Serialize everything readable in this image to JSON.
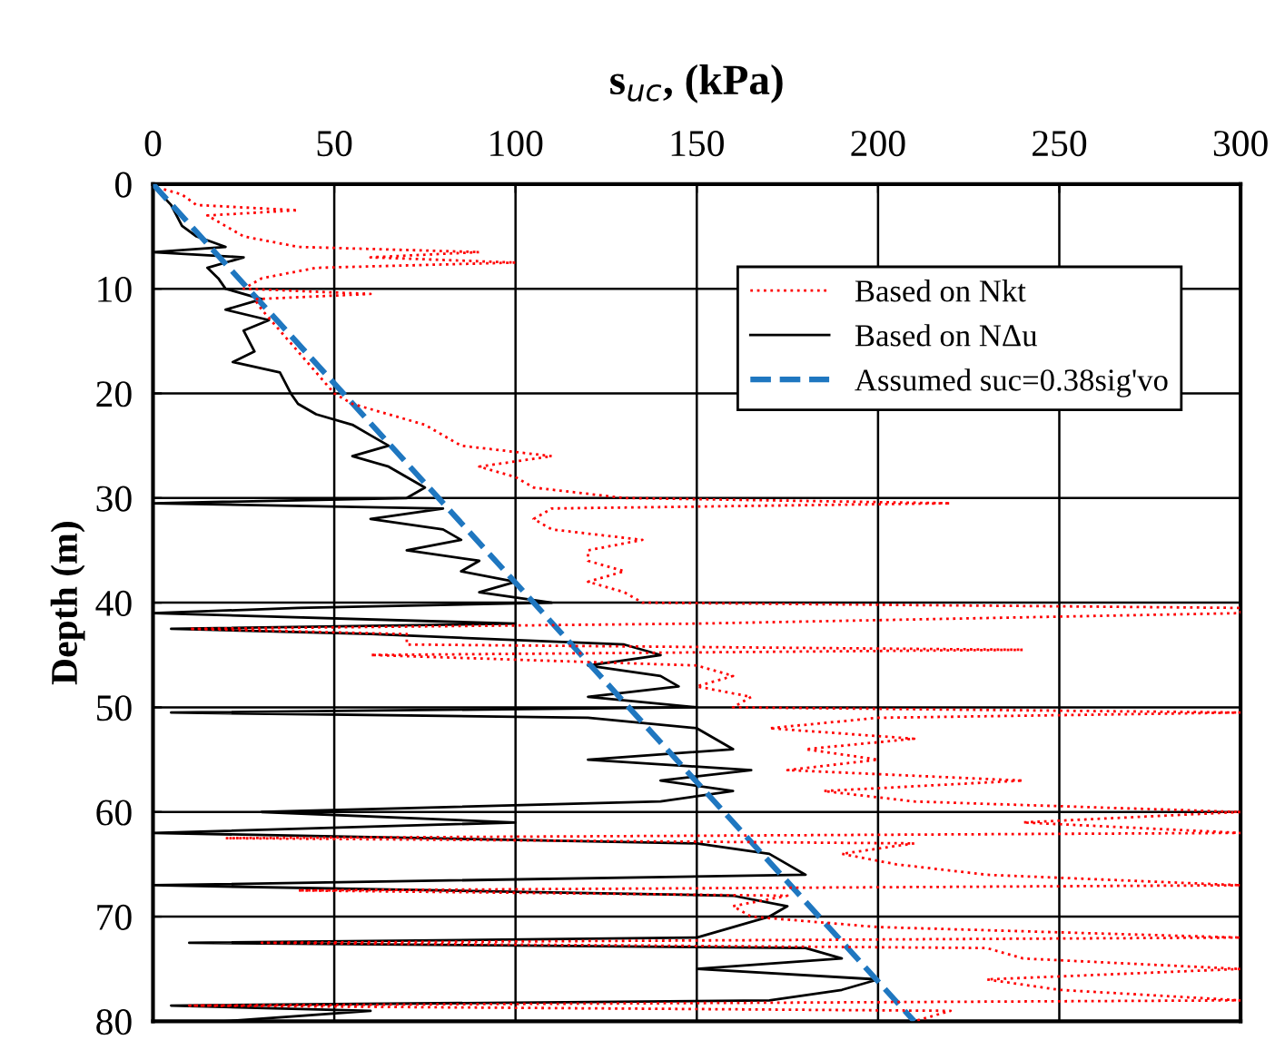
{
  "chart_data": {
    "type": "line",
    "xlabel": "s$_{uc}$, (kPa)",
    "ylabel": "Depth (m)",
    "xlim": [
      0,
      300
    ],
    "xticks": [
      0,
      50,
      100,
      150,
      200,
      250,
      300
    ],
    "ylim": [
      80,
      0
    ],
    "yticks": [
      0,
      10,
      20,
      30,
      40,
      50,
      60,
      70,
      80
    ],
    "grid": true,
    "legend": "top right",
    "series": [
      {
        "name": "Based on Nkt",
        "color": "#ff0000",
        "line_style": "dotted",
        "x": [
          3,
          8,
          12,
          40,
          15,
          20,
          25,
          40,
          90,
          60,
          100,
          45,
          30,
          25,
          60,
          28,
          30,
          35,
          40,
          45,
          50,
          55,
          65,
          75,
          80,
          85,
          110,
          90,
          100,
          105,
          130,
          220,
          110,
          105,
          110,
          135,
          120,
          120,
          130,
          120,
          130,
          135,
          300,
          300,
          150,
          10,
          70,
          70,
          240,
          60,
          150,
          160,
          150,
          165,
          160,
          300,
          200,
          170,
          210,
          180,
          200,
          175,
          240,
          185,
          210,
          300,
          240,
          300,
          20,
          210,
          190,
          205,
          230,
          300,
          40,
          175,
          160,
          165,
          200,
          300,
          30,
          230,
          240,
          300,
          230,
          250,
          300,
          10,
          220,
          210
        ],
        "values": [
          0.5,
          1,
          2,
          2.5,
          3,
          4,
          5,
          6,
          6.5,
          7,
          7.5,
          8,
          9,
          10,
          10.5,
          11,
          12,
          14,
          16,
          18,
          20,
          21,
          22,
          23,
          24,
          25,
          26,
          27,
          28,
          29,
          30,
          30.5,
          31,
          32,
          33,
          34,
          35,
          36,
          37,
          38,
          39,
          40,
          40.5,
          41,
          42,
          42.5,
          43,
          44,
          44.5,
          45,
          46,
          47,
          48,
          49,
          50,
          50.5,
          51,
          52,
          53,
          54,
          55,
          56,
          57,
          58,
          59,
          60,
          61,
          62,
          62.5,
          63,
          64,
          65,
          66,
          67,
          67.5,
          68,
          69,
          70,
          71,
          72,
          72.5,
          73,
          74,
          75,
          76,
          77,
          78,
          78.5,
          79,
          80
        ]
      },
      {
        "name": "Based on NΔu",
        "color": "#000000",
        "line_style": "solid",
        "x": [
          1,
          5,
          8,
          12,
          20,
          0,
          25,
          15,
          18,
          20,
          30,
          20,
          32,
          25,
          28,
          22,
          35,
          38,
          40,
          45,
          55,
          60,
          65,
          55,
          65,
          70,
          75,
          70,
          0,
          80,
          60,
          80,
          85,
          70,
          90,
          85,
          100,
          90,
          110,
          40,
          0,
          100,
          5,
          60,
          130,
          140,
          120,
          140,
          145,
          120,
          150,
          5,
          120,
          150,
          155,
          160,
          120,
          165,
          140,
          160,
          140,
          30,
          100,
          0,
          150,
          170,
          175,
          180,
          0,
          160,
          175,
          170,
          160,
          150,
          10,
          180,
          190,
          150,
          200,
          190,
          170,
          5,
          60,
          20
        ],
        "values": [
          0.5,
          2,
          4,
          5,
          6,
          6.5,
          7,
          8,
          9,
          10,
          11,
          12,
          13,
          14,
          16,
          17,
          18,
          20,
          21,
          22,
          23,
          24,
          25,
          26,
          27,
          28,
          29,
          30,
          30.5,
          31,
          32,
          33,
          34,
          35,
          36,
          37,
          38,
          39,
          40,
          40.5,
          41,
          42,
          42.5,
          43,
          44,
          45,
          46,
          47,
          48,
          49,
          50,
          50.5,
          51,
          52,
          53,
          54,
          55,
          56,
          57,
          58,
          59,
          60,
          61,
          62,
          63,
          64,
          65,
          66,
          67,
          68,
          69,
          70,
          71,
          72,
          72.5,
          73,
          74,
          75,
          76,
          77,
          78,
          78.5,
          79,
          80
        ]
      },
      {
        "name": "Assumed suc=0.38sig'vo",
        "color": "#1f77c0",
        "line_style": "dashed",
        "x": [
          0,
          210
        ],
        "values": [
          0,
          80
        ]
      }
    ]
  }
}
